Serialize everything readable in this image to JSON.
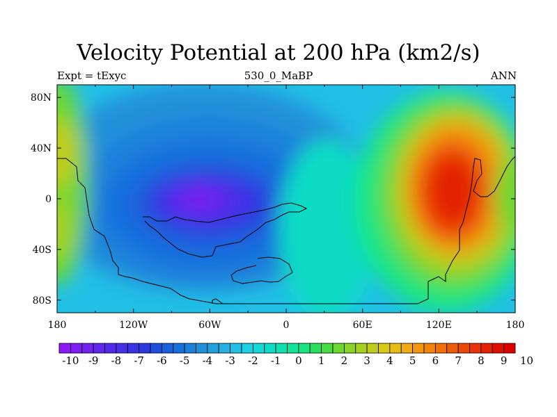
{
  "title": "Velocity Potential at 200 hPa (km2/s)",
  "left_string": "Expt = tExyc",
  "center_string": "530_0_MaBP",
  "right_string": "ANN",
  "map": {
    "projection": "cylindrical equidistant",
    "lon_range": [
      -180,
      180
    ],
    "lat_range": [
      -90,
      90
    ],
    "x_ticks": [
      "180",
      "120W",
      "60W",
      "0",
      "60E",
      "120E",
      "180"
    ],
    "y_ticks": [
      "80N",
      "40N",
      "0",
      "40S",
      "80S"
    ]
  },
  "chart_data": {
    "type": "heatmap",
    "variable": "Velocity Potential at 200 hPa",
    "units": "km2/s",
    "colorbar": {
      "levels": [
        -10,
        -9.5,
        -9,
        -8.5,
        -8,
        -7.5,
        -7,
        -6.5,
        -6,
        -5.5,
        -5,
        -4.5,
        -4,
        -3.5,
        -3,
        -2.5,
        -2,
        -1.5,
        -1,
        -0.5,
        0,
        0.5,
        1,
        1.5,
        2,
        2.5,
        3,
        3.5,
        4,
        4.5,
        5,
        5.5,
        6,
        6.5,
        7,
        7.5,
        8,
        8.5,
        9,
        9.5,
        10
      ],
      "labels": [
        "-10",
        "-9",
        "-8",
        "-7",
        "-6",
        "-5",
        "-4",
        "-3",
        "-2",
        "-1",
        "0",
        "1",
        "2",
        "3",
        "4",
        "5",
        "6",
        "7",
        "8",
        "9",
        "10"
      ],
      "colors": [
        "#8c19f5",
        "#7e1df3",
        "#6f22f0",
        "#6226ee",
        "#5329ec",
        "#462fe9",
        "#3833e4",
        "#2b3ae0",
        "#1e4fdf",
        "#1a60dc",
        "#1870dc",
        "#1b80db",
        "#2090d9",
        "#22a0dd",
        "#26b0e2",
        "#22c0e6",
        "#1dd0e6",
        "#14d8da",
        "#0fdcc5",
        "#0ee0b0",
        "#10e49a",
        "#14e680",
        "#28e060",
        "#48dc40",
        "#6cd830",
        "#8ad428",
        "#a6d020",
        "#c0cc1c",
        "#d8c818",
        "#e8bc14",
        "#f0aa12",
        "#f2980f",
        "#f2840c",
        "#f0700a",
        "#ee5c08",
        "#ec4806",
        "#e83404",
        "#e42202",
        "#e01000",
        "#dc0000"
      ]
    },
    "extrema": [
      {
        "type": "minimum",
        "lon": -62,
        "lat": 0,
        "value": -10
      },
      {
        "type": "maximum",
        "lon": 125,
        "lat": 5,
        "value": 8.5
      }
    ]
  }
}
